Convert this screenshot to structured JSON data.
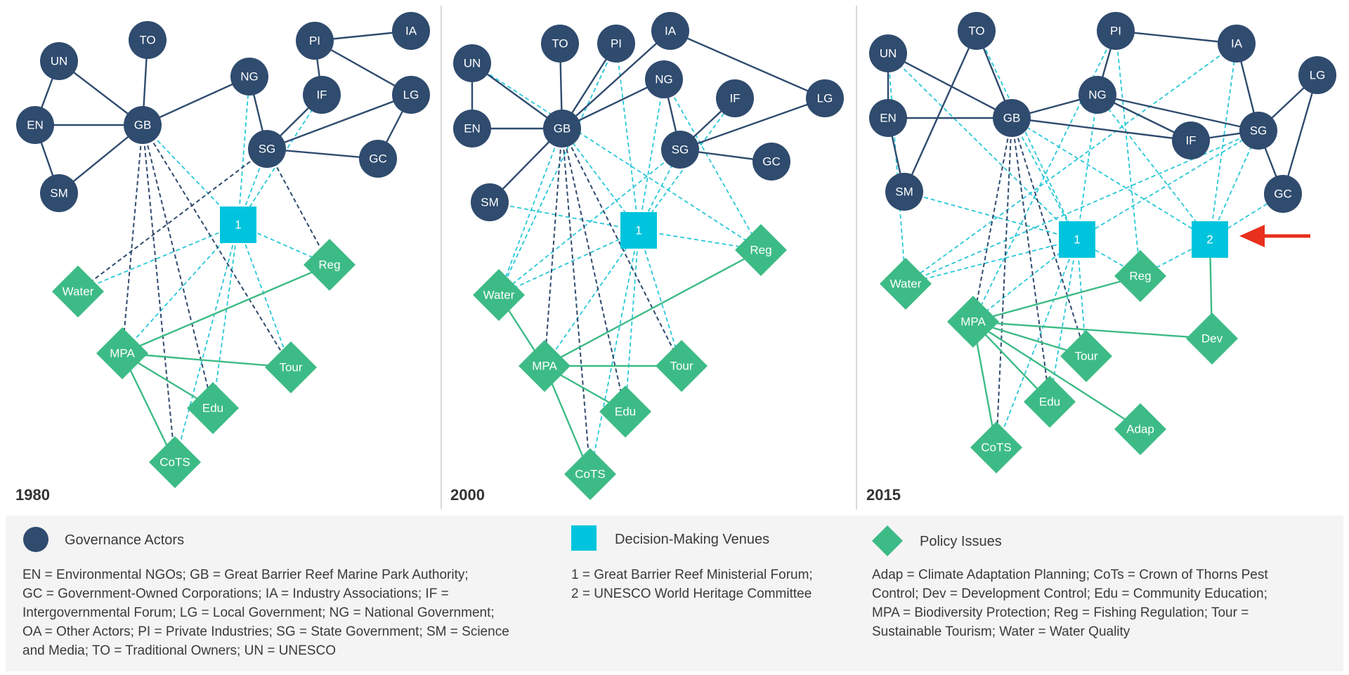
{
  "colors": {
    "actor": "#2f4b6e",
    "venue": "#00c4dd",
    "issue": "#3dbb86",
    "solid_edge": "#2f4b6e",
    "issue_edge": "#3dbb86",
    "dash_actor_issue": "#2f4b6e",
    "dash_venue": "#27c8d8",
    "arrow": "#e8301c",
    "divider": "#cccccc",
    "legend_bg": "#f4f4f4"
  },
  "panels": [
    {
      "year": "1980",
      "nodes": [
        {
          "id": "UN",
          "type": "actor"
        },
        {
          "id": "TO",
          "type": "actor"
        },
        {
          "id": "EN",
          "type": "actor"
        },
        {
          "id": "GB",
          "type": "actor"
        },
        {
          "id": "SM",
          "type": "actor"
        },
        {
          "id": "NG",
          "type": "actor"
        },
        {
          "id": "PI",
          "type": "actor"
        },
        {
          "id": "IA",
          "type": "actor"
        },
        {
          "id": "IF",
          "type": "actor"
        },
        {
          "id": "LG",
          "type": "actor"
        },
        {
          "id": "SG",
          "type": "actor"
        },
        {
          "id": "GC",
          "type": "actor"
        },
        {
          "id": "1",
          "type": "venue"
        },
        {
          "id": "Water",
          "type": "issue"
        },
        {
          "id": "Reg",
          "type": "issue"
        },
        {
          "id": "MPA",
          "type": "issue"
        },
        {
          "id": "Tour",
          "type": "issue"
        },
        {
          "id": "Edu",
          "type": "issue"
        },
        {
          "id": "CoTS",
          "type": "issue"
        }
      ],
      "solid_edges": [
        [
          "UN",
          "GB"
        ],
        [
          "EN",
          "UN"
        ],
        [
          "EN",
          "GB"
        ],
        [
          "EN",
          "SM"
        ],
        [
          "SM",
          "GB"
        ],
        [
          "TO",
          "GB"
        ],
        [
          "GB",
          "NG"
        ],
        [
          "NG",
          "SG"
        ],
        [
          "PI",
          "IA"
        ],
        [
          "PI",
          "IF"
        ],
        [
          "PI",
          "LG"
        ],
        [
          "IF",
          "SG"
        ],
        [
          "SG",
          "LG"
        ],
        [
          "LG",
          "GC"
        ],
        [
          "SG",
          "GC"
        ]
      ],
      "issue_edges": [
        [
          "MPA",
          "Reg"
        ],
        [
          "MPA",
          "Tour"
        ],
        [
          "MPA",
          "Edu"
        ],
        [
          "MPA",
          "CoTS"
        ]
      ],
      "dash_actor_issue": [
        [
          "GB",
          "MPA"
        ],
        [
          "GB",
          "Edu"
        ],
        [
          "GB",
          "CoTS"
        ],
        [
          "GB",
          "Tour"
        ],
        [
          "SG",
          "Water"
        ],
        [
          "SG",
          "Reg"
        ]
      ],
      "dash_venue": [
        [
          "1",
          "GB"
        ],
        [
          "1",
          "SG"
        ],
        [
          "1",
          "NG"
        ],
        [
          "1",
          "IF"
        ],
        [
          "1",
          "Water"
        ],
        [
          "1",
          "Reg"
        ],
        [
          "1",
          "MPA"
        ],
        [
          "1",
          "Edu"
        ],
        [
          "1",
          "CoTS"
        ],
        [
          "1",
          "Tour"
        ]
      ]
    },
    {
      "year": "2000",
      "nodes": [
        {
          "id": "UN",
          "type": "actor"
        },
        {
          "id": "TO",
          "type": "actor"
        },
        {
          "id": "PI",
          "type": "actor"
        },
        {
          "id": "IA",
          "type": "actor"
        },
        {
          "id": "EN",
          "type": "actor"
        },
        {
          "id": "GB",
          "type": "actor"
        },
        {
          "id": "SM",
          "type": "actor"
        },
        {
          "id": "NG",
          "type": "actor"
        },
        {
          "id": "IF",
          "type": "actor"
        },
        {
          "id": "LG",
          "type": "actor"
        },
        {
          "id": "SG",
          "type": "actor"
        },
        {
          "id": "GC",
          "type": "actor"
        },
        {
          "id": "1",
          "type": "venue"
        },
        {
          "id": "Reg",
          "type": "issue"
        },
        {
          "id": "Water",
          "type": "issue"
        },
        {
          "id": "MPA",
          "type": "issue"
        },
        {
          "id": "Tour",
          "type": "issue"
        },
        {
          "id": "Edu",
          "type": "issue"
        },
        {
          "id": "CoTS",
          "type": "issue"
        }
      ],
      "solid_edges": [
        [
          "UN",
          "GB"
        ],
        [
          "EN",
          "UN"
        ],
        [
          "EN",
          "GB"
        ],
        [
          "SM",
          "GB"
        ],
        [
          "TO",
          "GB"
        ],
        [
          "PI",
          "GB"
        ],
        [
          "IA",
          "GB"
        ],
        [
          "GB",
          "NG"
        ],
        [
          "NG",
          "SG"
        ],
        [
          "IA",
          "LG"
        ],
        [
          "IF",
          "SG"
        ],
        [
          "SG",
          "LG"
        ],
        [
          "SG",
          "GC"
        ]
      ],
      "issue_edges": [
        [
          "Water",
          "MPA"
        ],
        [
          "MPA",
          "Reg"
        ],
        [
          "MPA",
          "Tour"
        ],
        [
          "MPA",
          "Edu"
        ],
        [
          "MPA",
          "CoTS"
        ]
      ],
      "dash_actor_issue": [
        [
          "GB",
          "MPA"
        ],
        [
          "GB",
          "Edu"
        ],
        [
          "GB",
          "CoTS"
        ],
        [
          "GB",
          "Tour"
        ]
      ],
      "dash_venue": [
        [
          "1",
          "GB"
        ],
        [
          "1",
          "SG"
        ],
        [
          "1",
          "NG"
        ],
        [
          "1",
          "IF"
        ],
        [
          "1",
          "PI"
        ],
        [
          "1",
          "SM"
        ],
        [
          "1",
          "Water"
        ],
        [
          "1",
          "Reg"
        ],
        [
          "1",
          "MPA"
        ],
        [
          "1",
          "Edu"
        ],
        [
          "1",
          "CoTS"
        ],
        [
          "1",
          "Tour"
        ],
        [
          "UN",
          "Reg"
        ],
        [
          "PI",
          "Water"
        ],
        [
          "NG",
          "Reg"
        ],
        [
          "SG",
          "Water"
        ],
        [
          "GB",
          "Water"
        ]
      ]
    },
    {
      "year": "2015",
      "nodes": [
        {
          "id": "UN",
          "type": "actor"
        },
        {
          "id": "TO",
          "type": "actor"
        },
        {
          "id": "PI",
          "type": "actor"
        },
        {
          "id": "IA",
          "type": "actor"
        },
        {
          "id": "LG",
          "type": "actor"
        },
        {
          "id": "EN",
          "type": "actor"
        },
        {
          "id": "GB",
          "type": "actor"
        },
        {
          "id": "NG",
          "type": "actor"
        },
        {
          "id": "IF",
          "type": "actor"
        },
        {
          "id": "SG",
          "type": "actor"
        },
        {
          "id": "SM",
          "type": "actor"
        },
        {
          "id": "GC",
          "type": "actor"
        },
        {
          "id": "1",
          "type": "venue"
        },
        {
          "id": "2",
          "type": "venue"
        },
        {
          "id": "Water",
          "type": "issue"
        },
        {
          "id": "Reg",
          "type": "issue"
        },
        {
          "id": "MPA",
          "type": "issue"
        },
        {
          "id": "Dev",
          "type": "issue"
        },
        {
          "id": "Tour",
          "type": "issue"
        },
        {
          "id": "Edu",
          "type": "issue"
        },
        {
          "id": "Adap",
          "type": "issue"
        },
        {
          "id": "CoTS",
          "type": "issue"
        }
      ],
      "solid_edges": [
        [
          "UN",
          "GB"
        ],
        [
          "UN",
          "EN"
        ],
        [
          "EN",
          "GB"
        ],
        [
          "EN",
          "SM"
        ],
        [
          "TO",
          "GB"
        ],
        [
          "TO",
          "SM"
        ],
        [
          "GB",
          "NG"
        ],
        [
          "GB",
          "IF"
        ],
        [
          "PI",
          "NG"
        ],
        [
          "PI",
          "IA"
        ],
        [
          "NG",
          "SG"
        ],
        [
          "NG",
          "IF"
        ],
        [
          "IA",
          "SG"
        ],
        [
          "IF",
          "SG"
        ],
        [
          "SG",
          "LG"
        ],
        [
          "SG",
          "GC"
        ],
        [
          "LG",
          "GC"
        ]
      ],
      "issue_edges": [
        [
          "MPA",
          "Reg"
        ],
        [
          "MPA",
          "Dev"
        ],
        [
          "MPA",
          "Tour"
        ],
        [
          "MPA",
          "Edu"
        ],
        [
          "MPA",
          "Adap"
        ],
        [
          "MPA",
          "CoTS"
        ],
        [
          "2",
          "Dev"
        ]
      ],
      "dash_actor_issue": [
        [
          "GB",
          "MPA"
        ],
        [
          "GB",
          "CoTS"
        ],
        [
          "GB",
          "Edu"
        ],
        [
          "GB",
          "Tour"
        ]
      ],
      "dash_venue": [
        [
          "1",
          "GB"
        ],
        [
          "1",
          "SG"
        ],
        [
          "1",
          "NG"
        ],
        [
          "1",
          "SM"
        ],
        [
          "1",
          "UN"
        ],
        [
          "1",
          "Water"
        ],
        [
          "1",
          "Reg"
        ],
        [
          "1",
          "MPA"
        ],
        [
          "1",
          "Edu"
        ],
        [
          "1",
          "CoTS"
        ],
        [
          "1",
          "Tour"
        ],
        [
          "2",
          "NG"
        ],
        [
          "2",
          "SG"
        ],
        [
          "2",
          "GB"
        ],
        [
          "2",
          "IA"
        ],
        [
          "2",
          "GC"
        ],
        [
          "2",
          "Reg"
        ],
        [
          "PI",
          "MPA"
        ],
        [
          "PI",
          "Reg"
        ],
        [
          "SG",
          "Water"
        ],
        [
          "IA",
          "Water"
        ],
        [
          "TO",
          "1"
        ],
        [
          "UN",
          "Water"
        ]
      ]
    }
  ],
  "legend": {
    "actors": {
      "title": "Governance Actors",
      "lines": [
        "EN = Environmental NGOs; GB = Great Barrier Reef Marine Park Authority;",
        "GC = Government-Owned Corporations; IA = Industry Associations; IF =",
        "Intergovernmental Forum; LG = Local Government; NG = National Government;",
        "OA = Other Actors; PI = Private Industries; SG = State Government; SM = Science",
        "and Media; TO = Traditional Owners; UN = UNESCO"
      ]
    },
    "venues": {
      "title": "Decision-Making Venues",
      "lines": [
        "1 = Great Barrier Reef Ministerial Forum;",
        "2 = UNESCO World Heritage Committee"
      ]
    },
    "issues": {
      "title": "Policy Issues",
      "lines": [
        "Adap = Climate Adaptation Planning; CoTs = Crown of Thorns Pest",
        "Control; Dev = Development Control; Edu = Community Education;",
        "MPA = Biodiversity Protection; Reg = Fishing Regulation; Tour =",
        "Sustainable Tourism; Water = Water Quality"
      ]
    }
  }
}
